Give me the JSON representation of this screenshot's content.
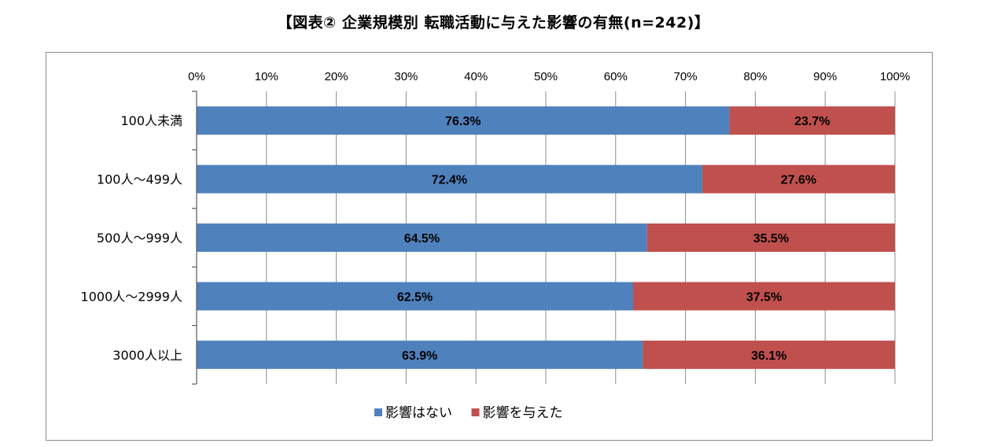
{
  "chart_data": {
    "type": "bar",
    "orientation": "horizontal",
    "stacked": true,
    "title": "【図表②  企業規模別  転職活動に与えた影響の有無(n=242)】",
    "categories": [
      "100人未満",
      "100人～499人",
      "500人～999人",
      "1000人～2999人",
      "3000人以上"
    ],
    "series": [
      {
        "name": "影響はない",
        "color": "#4f81bd",
        "values": [
          76.3,
          72.4,
          64.5,
          62.5,
          63.9
        ],
        "labels": [
          "76.3%",
          "72.4%",
          "64.5%",
          "62.5%",
          "63.9%"
        ]
      },
      {
        "name": "影響を与えた",
        "color": "#c0504d",
        "values": [
          23.7,
          27.6,
          35.5,
          37.5,
          36.1
        ],
        "labels": [
          "23.7%",
          "27.6%",
          "35.5%",
          "37.5%",
          "36.1%"
        ]
      }
    ],
    "xlim": [
      0,
      100
    ],
    "x_ticks": [
      0,
      10,
      20,
      30,
      40,
      50,
      60,
      70,
      80,
      90,
      100
    ],
    "x_tick_labels": [
      "0%",
      "10%",
      "20%",
      "30%",
      "40%",
      "50%",
      "60%",
      "70%",
      "80%",
      "90%",
      "100%"
    ],
    "x_axis_position": "top",
    "grid": true,
    "legend": "bottom-center",
    "xlabel": "",
    "ylabel": ""
  }
}
